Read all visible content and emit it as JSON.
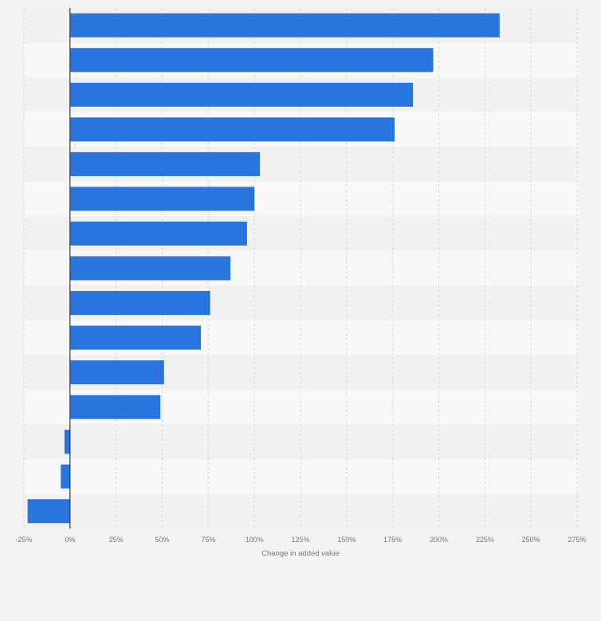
{
  "chart_data": {
    "type": "bar",
    "orientation": "horizontal",
    "categories": [
      "",
      "",
      "",
      "",
      "",
      "",
      "",
      "",
      "",
      "",
      "",
      "",
      "",
      "",
      ""
    ],
    "values": [
      233,
      197,
      186,
      176,
      103,
      100,
      96,
      87,
      76,
      71,
      51,
      49,
      -3,
      -5,
      -23
    ],
    "xlabel": "Change in added value",
    "ylabel": "",
    "xlim": [
      -25,
      275
    ],
    "xticks": [
      -25,
      0,
      25,
      50,
      75,
      100,
      125,
      150,
      175,
      200,
      225,
      250,
      275
    ],
    "xtick_labels": [
      "-25%",
      "0%",
      "25%",
      "50%",
      "75%",
      "100%",
      "125%",
      "150%",
      "175%",
      "200%",
      "225%",
      "250%",
      "275%"
    ],
    "grid": true,
    "legend": "none",
    "colors": {
      "bar": "#2775dd",
      "band_light": "#f8f8f8",
      "band_dark": "#f1f1f1",
      "background": "#f3f3f3",
      "grid": "#d7d7d7",
      "zero_line": "#333333",
      "text": "#777777"
    }
  }
}
